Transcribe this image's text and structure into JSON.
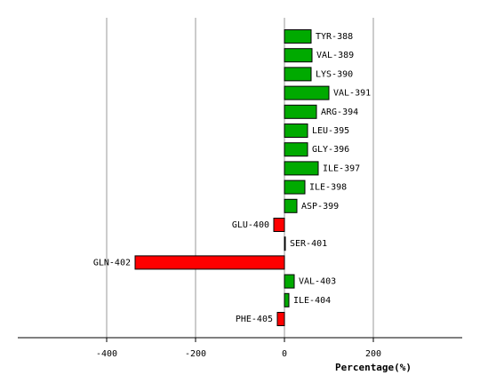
{
  "chart_data": {
    "type": "barh",
    "categories": [
      "TYR-388",
      "VAL-389",
      "LYS-390",
      "VAL-391",
      "ARG-394",
      "LEU-395",
      "GLY-396",
      "ILE-397",
      "ILE-398",
      "ASP-399",
      "GLU-400",
      "SER-401",
      "GLN-402",
      "VAL-403",
      "ILE-404",
      "PHE-405"
    ],
    "values": [
      60,
      62,
      60,
      100,
      72,
      52,
      52,
      76,
      46,
      28,
      -24,
      2,
      -336,
      22,
      10,
      -16
    ],
    "colors": [
      "#00aa00",
      "#00aa00",
      "#00aa00",
      "#00aa00",
      "#00aa00",
      "#00aa00",
      "#00aa00",
      "#00aa00",
      "#00aa00",
      "#00aa00",
      "#ff0000",
      "#00aa00",
      "#ff0000",
      "#00aa00",
      "#00aa00",
      "#ff0000"
    ],
    "xlim": [
      -600,
      400
    ],
    "xticks": [
      -400,
      -200,
      0,
      200
    ],
    "grid": true,
    "x_label": "Percentage(%)"
  }
}
